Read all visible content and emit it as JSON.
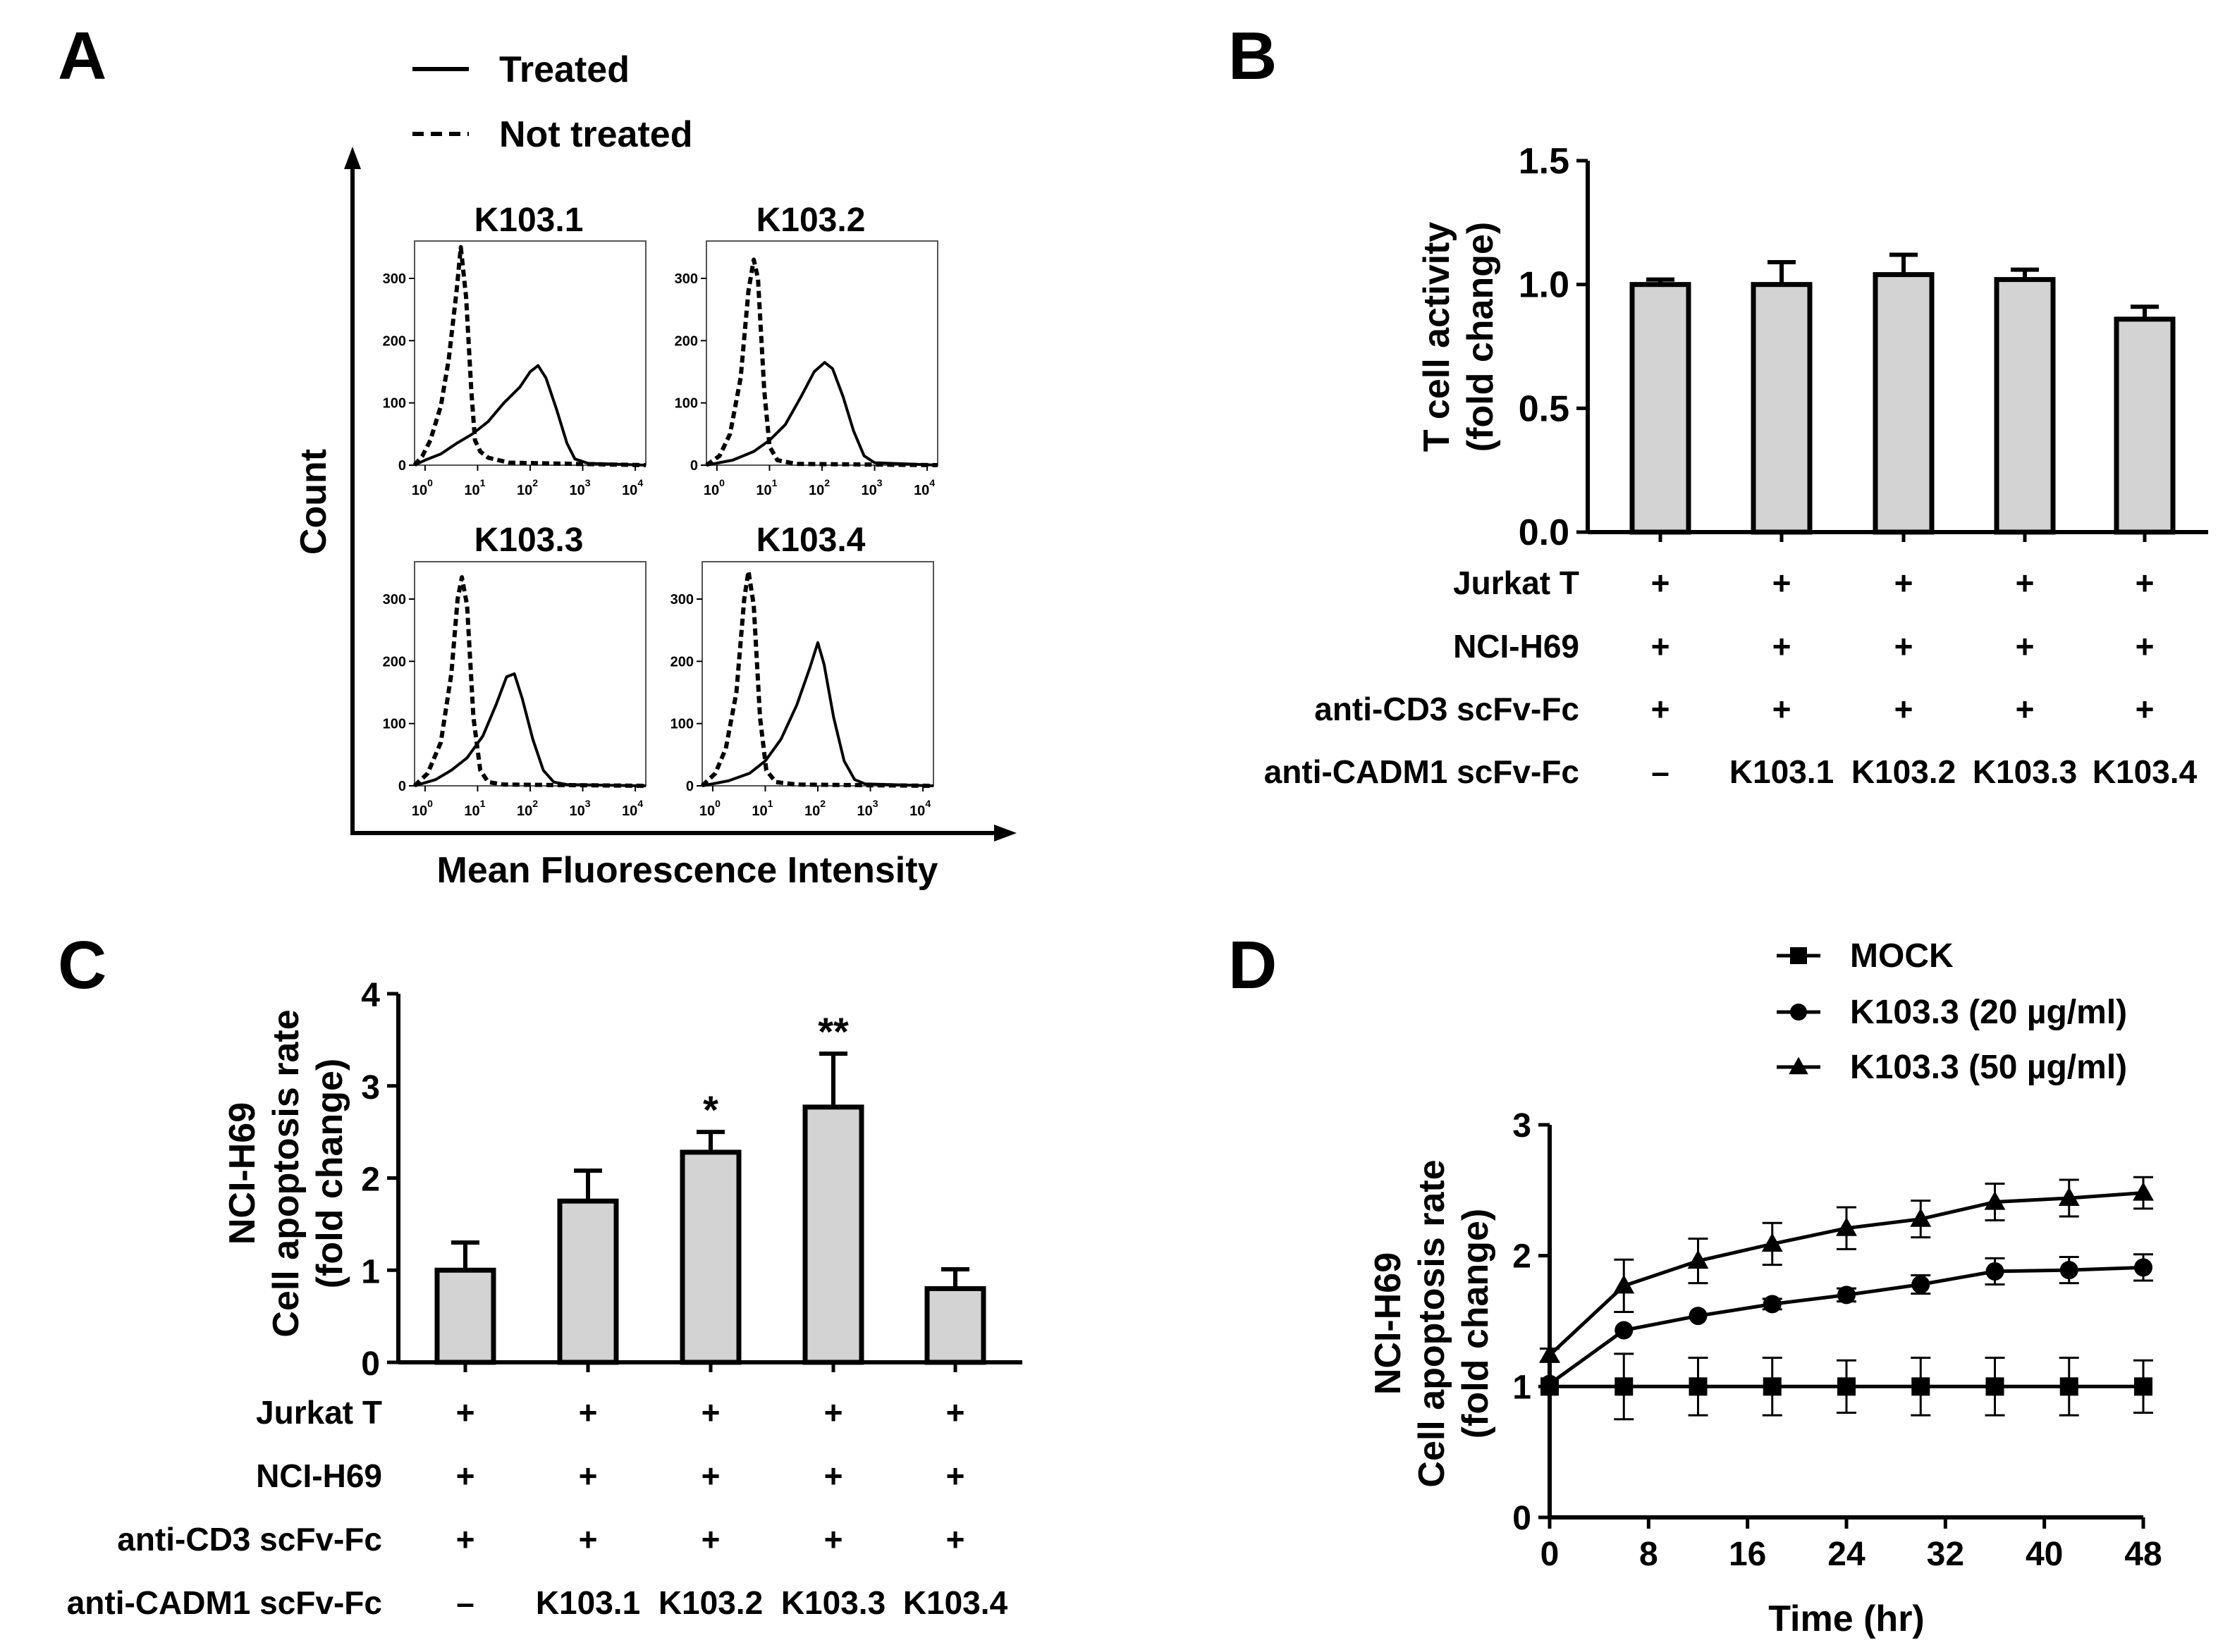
{
  "panels": {
    "a": "A",
    "b": "B",
    "c": "C",
    "d": "D"
  },
  "chart_data": [
    {
      "panel": "A",
      "type": "histogram",
      "legend": [
        {
          "label": "Treated",
          "style": "solid"
        },
        {
          "label": "Not treated",
          "style": "dashed"
        }
      ],
      "ylabel": "Count",
      "xlabel": "Mean Fluorescence Intensity",
      "y_ticks": [
        "0",
        "100",
        "200",
        "300"
      ],
      "x_tick_base": "10",
      "x_tick_exponents": [
        "0",
        "1",
        "2",
        "3",
        "4"
      ],
      "ylim": [
        0,
        360
      ],
      "xlim_log10": [
        -0.2,
        4.2
      ],
      "subplots": [
        {
          "title": "K103.1",
          "not_treated": [
            [
              -0.2,
              0
            ],
            [
              -0.05,
              15
            ],
            [
              0.1,
              40
            ],
            [
              0.3,
              95
            ],
            [
              0.45,
              170
            ],
            [
              0.6,
              280
            ],
            [
              0.68,
              350
            ],
            [
              0.78,
              270
            ],
            [
              0.88,
              120
            ],
            [
              0.95,
              40
            ],
            [
              1.05,
              22
            ],
            [
              1.2,
              12
            ],
            [
              1.6,
              4
            ],
            [
              4.2,
              0
            ]
          ],
          "treated": [
            [
              -0.2,
              0
            ],
            [
              0,
              8
            ],
            [
              0.3,
              18
            ],
            [
              0.6,
              35
            ],
            [
              0.9,
              50
            ],
            [
              1.2,
              70
            ],
            [
              1.5,
              100
            ],
            [
              1.8,
              125
            ],
            [
              2.0,
              150
            ],
            [
              2.15,
              160
            ],
            [
              2.3,
              140
            ],
            [
              2.5,
              90
            ],
            [
              2.7,
              35
            ],
            [
              2.85,
              10
            ],
            [
              3.1,
              3
            ],
            [
              4.2,
              0
            ]
          ]
        },
        {
          "title": "K103.2",
          "not_treated": [
            [
              -0.2,
              0
            ],
            [
              0.05,
              15
            ],
            [
              0.25,
              50
            ],
            [
              0.45,
              140
            ],
            [
              0.6,
              280
            ],
            [
              0.7,
              330
            ],
            [
              0.78,
              300
            ],
            [
              0.9,
              120
            ],
            [
              1.0,
              30
            ],
            [
              1.15,
              8
            ],
            [
              1.5,
              2
            ],
            [
              4.2,
              0
            ]
          ],
          "treated": [
            [
              -0.2,
              0
            ],
            [
              0.3,
              8
            ],
            [
              0.7,
              22
            ],
            [
              1.0,
              40
            ],
            [
              1.3,
              65
            ],
            [
              1.6,
              110
            ],
            [
              1.85,
              150
            ],
            [
              2.05,
              165
            ],
            [
              2.2,
              155
            ],
            [
              2.4,
              110
            ],
            [
              2.6,
              55
            ],
            [
              2.8,
              15
            ],
            [
              3.0,
              4
            ],
            [
              4.2,
              0
            ]
          ]
        },
        {
          "title": "K103.3",
          "not_treated": [
            [
              -0.2,
              0
            ],
            [
              0.05,
              20
            ],
            [
              0.3,
              70
            ],
            [
              0.5,
              180
            ],
            [
              0.62,
              300
            ],
            [
              0.7,
              335
            ],
            [
              0.8,
              290
            ],
            [
              0.92,
              110
            ],
            [
              1.05,
              25
            ],
            [
              1.2,
              6
            ],
            [
              1.5,
              2
            ],
            [
              4.2,
              0
            ]
          ],
          "treated": [
            [
              -0.2,
              0
            ],
            [
              0.2,
              10
            ],
            [
              0.5,
              25
            ],
            [
              0.8,
              45
            ],
            [
              1.1,
              80
            ],
            [
              1.35,
              130
            ],
            [
              1.55,
              175
            ],
            [
              1.7,
              180
            ],
            [
              1.85,
              140
            ],
            [
              2.05,
              75
            ],
            [
              2.25,
              25
            ],
            [
              2.45,
              6
            ],
            [
              2.7,
              2
            ],
            [
              4.2,
              0
            ]
          ]
        },
        {
          "title": "K103.4",
          "not_treated": [
            [
              -0.2,
              0
            ],
            [
              0.05,
              20
            ],
            [
              0.25,
              60
            ],
            [
              0.45,
              150
            ],
            [
              0.6,
              300
            ],
            [
              0.68,
              345
            ],
            [
              0.78,
              290
            ],
            [
              0.9,
              110
            ],
            [
              1.02,
              25
            ],
            [
              1.2,
              6
            ],
            [
              1.6,
              2
            ],
            [
              4.2,
              0
            ]
          ],
          "treated": [
            [
              -0.2,
              0
            ],
            [
              0.3,
              8
            ],
            [
              0.7,
              20
            ],
            [
              1.0,
              40
            ],
            [
              1.3,
              75
            ],
            [
              1.6,
              130
            ],
            [
              1.85,
              190
            ],
            [
              2.0,
              230
            ],
            [
              2.12,
              195
            ],
            [
              2.3,
              110
            ],
            [
              2.5,
              40
            ],
            [
              2.7,
              10
            ],
            [
              2.9,
              3
            ],
            [
              4.2,
              0
            ]
          ]
        }
      ]
    },
    {
      "panel": "B",
      "type": "bar",
      "ylabel_lines": [
        "T cell activity",
        "(fold change)"
      ],
      "ylim": [
        0,
        1.5
      ],
      "y_ticks": [
        "0.0",
        "0.5",
        "1.0",
        "1.5"
      ],
      "values": [
        1.0,
        1.0,
        1.04,
        1.02,
        0.86
      ],
      "errors": [
        0.02,
        0.09,
        0.08,
        0.04,
        0.05
      ],
      "significance": [
        "",
        "",
        "",
        "",
        ""
      ],
      "conditions": [
        {
          "label": "Jurkat T",
          "values": [
            "+",
            "+",
            "+",
            "+",
            "+"
          ]
        },
        {
          "label": "NCI-H69",
          "values": [
            "+",
            "+",
            "+",
            "+",
            "+"
          ]
        },
        {
          "label": "anti-CD3 scFv-Fc",
          "values": [
            "+",
            "+",
            "+",
            "+",
            "+"
          ]
        },
        {
          "label": "anti-CADM1 scFv-Fc",
          "values": [
            "–",
            "K103.1",
            "K103.2",
            "K103.3",
            "K103.4"
          ]
        }
      ]
    },
    {
      "panel": "C",
      "type": "bar",
      "ylabel_lines": [
        "NCI-H69",
        "Cell apoptosis rate",
        "(fold change)"
      ],
      "ylim": [
        0,
        4
      ],
      "y_ticks": [
        "0",
        "1",
        "2",
        "3",
        "4"
      ],
      "values": [
        1.0,
        1.75,
        2.28,
        2.77,
        0.8
      ],
      "errors": [
        0.3,
        0.33,
        0.22,
        0.58,
        0.21
      ],
      "significance": [
        "",
        "",
        "*",
        "**",
        ""
      ],
      "conditions": [
        {
          "label": "Jurkat T",
          "values": [
            "+",
            "+",
            "+",
            "+",
            "+"
          ]
        },
        {
          "label": "NCI-H69",
          "values": [
            "+",
            "+",
            "+",
            "+",
            "+"
          ]
        },
        {
          "label": "anti-CD3 scFv-Fc",
          "values": [
            "+",
            "+",
            "+",
            "+",
            "+"
          ]
        },
        {
          "label": "anti-CADM1 scFv-Fc",
          "values": [
            "–",
            "K103.1",
            "K103.2",
            "K103.3",
            "K103.4"
          ]
        }
      ]
    },
    {
      "panel": "D",
      "type": "line",
      "ylabel_lines": [
        "NCI-H69",
        "Cell apoptosis rate",
        "(fold change)"
      ],
      "xlabel": "Time (hr)",
      "xlim": [
        0,
        48
      ],
      "ylim": [
        0,
        3
      ],
      "x_ticks": [
        "0",
        "8",
        "16",
        "24",
        "32",
        "40",
        "48"
      ],
      "y_ticks": [
        "0",
        "1",
        "2",
        "3"
      ],
      "x": [
        0,
        6,
        12,
        18,
        24,
        30,
        36,
        42,
        48
      ],
      "series": [
        {
          "name": "MOCK",
          "marker": "square",
          "values": [
            1.0,
            1.0,
            1.0,
            1.0,
            1.0,
            1.0,
            1.0,
            1.0,
            1.0
          ],
          "errors": [
            0.0,
            0.25,
            0.22,
            0.22,
            0.2,
            0.22,
            0.22,
            0.22,
            0.2
          ]
        },
        {
          "name": "K103.3 (20 µg/ml)",
          "marker": "circle",
          "values": [
            1.02,
            1.43,
            1.54,
            1.63,
            1.7,
            1.78,
            1.88,
            1.89,
            1.91
          ],
          "errors": [
            0.0,
            0.0,
            0.0,
            0.04,
            0.05,
            0.07,
            0.1,
            0.1,
            0.1
          ]
        },
        {
          "name": "K103.3 (50 µg/ml)",
          "marker": "triangle",
          "values": [
            1.24,
            1.77,
            1.96,
            2.09,
            2.21,
            2.28,
            2.41,
            2.44,
            2.48
          ],
          "errors": [
            0.05,
            0.2,
            0.17,
            0.16,
            0.16,
            0.14,
            0.14,
            0.14,
            0.12
          ]
        }
      ]
    }
  ]
}
